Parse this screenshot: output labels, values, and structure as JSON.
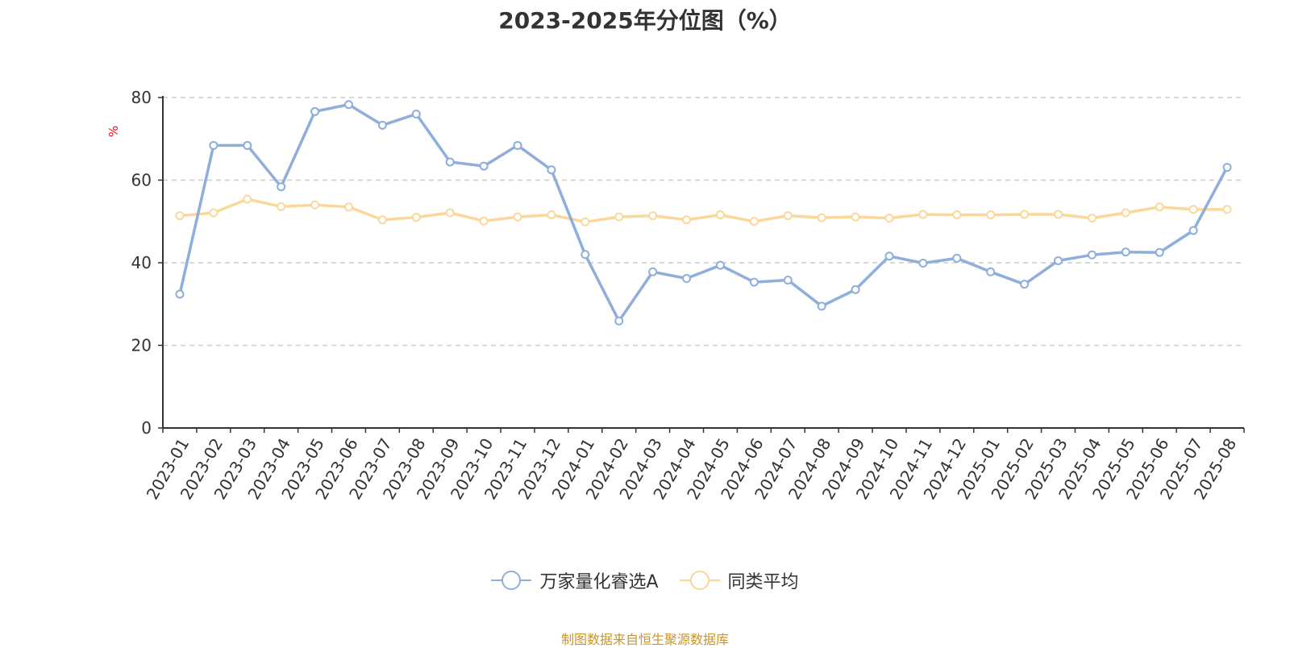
{
  "chart_data": {
    "type": "line",
    "title": "2023-2025年分位图（%）",
    "ylabel": "%",
    "ylim": [
      0,
      80
    ],
    "yticks": [
      0,
      20,
      40,
      60,
      80
    ],
    "grid": true,
    "legend_position": "bottom",
    "categories": [
      "2023-01",
      "2023-02",
      "2023-03",
      "2023-04",
      "2023-05",
      "2023-06",
      "2023-07",
      "2023-08",
      "2023-09",
      "2023-10",
      "2023-11",
      "2023-12",
      "2024-01",
      "2024-02",
      "2024-03",
      "2024-04",
      "2024-05",
      "2024-06",
      "2024-07",
      "2024-08",
      "2024-09",
      "2024-10",
      "2024-11",
      "2024-12",
      "2025-01",
      "2025-02",
      "2025-03",
      "2025-04",
      "2025-05",
      "2025-06",
      "2025-07",
      "2025-08"
    ],
    "series": [
      {
        "name": "万家量化睿选A",
        "color": "#8eaedb",
        "values": [
          32.4,
          68.4,
          68.4,
          58.4,
          76.6,
          78.3,
          73.3,
          76.0,
          64.4,
          63.4,
          68.4,
          62.5,
          42.0,
          25.9,
          37.8,
          36.2,
          39.4,
          35.3,
          35.8,
          29.5,
          33.5,
          41.6,
          39.9,
          41.1,
          37.8,
          34.8,
          40.5,
          41.9,
          42.6,
          42.5,
          47.8,
          63.1
        ]
      },
      {
        "name": "同类平均",
        "color": "#fbd89a",
        "values": [
          51.4,
          52.1,
          55.4,
          53.6,
          54.0,
          53.5,
          50.4,
          51.0,
          52.1,
          50.1,
          51.1,
          51.6,
          49.9,
          51.1,
          51.4,
          50.4,
          51.6,
          50.0,
          51.4,
          50.9,
          51.1,
          50.8,
          51.7,
          51.6,
          51.6,
          51.7,
          51.7,
          50.8,
          52.1,
          53.5,
          52.9,
          52.9
        ]
      }
    ]
  },
  "footer": {
    "source": "制图数据来自恒生聚源数据库"
  }
}
